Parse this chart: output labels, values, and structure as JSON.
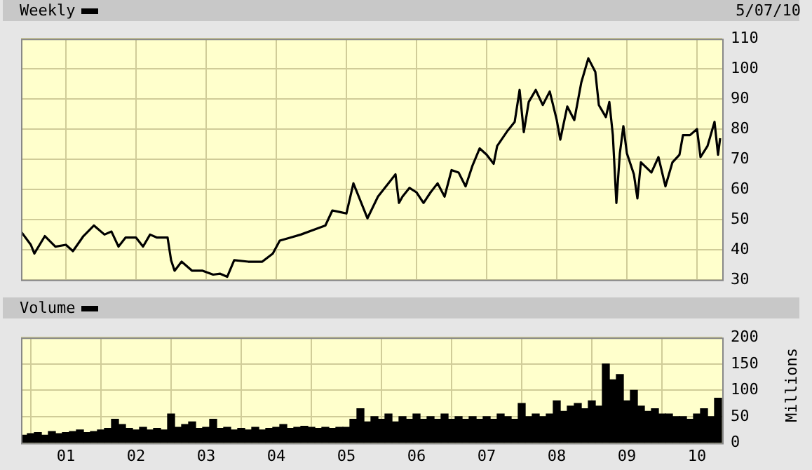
{
  "chart_data": [
    {
      "type": "line",
      "subtitle": "5/07/10",
      "legend": "top left",
      "grid": true,
      "tick_labels": "y",
      "xlim": [
        2000.36,
        2010.36
      ],
      "ylim": [
        30,
        110
      ],
      "yticks": [
        30,
        40,
        50,
        60,
        70,
        80,
        90,
        100,
        110
      ],
      "xticks": [
        {
          "value": 2001,
          "label": null
        },
        {
          "value": 2002,
          "label": null
        },
        {
          "value": 2003,
          "label": null
        },
        {
          "value": 2004,
          "label": null
        },
        {
          "value": 2005,
          "label": null
        },
        {
          "value": 2006,
          "label": null
        },
        {
          "value": 2007,
          "label": null
        },
        {
          "value": 2008,
          "label": null
        },
        {
          "value": 2009,
          "label": null
        },
        {
          "value": 2010,
          "label": null
        }
      ],
      "series": [
        {
          "name": "Weekly",
          "color": "#000000",
          "x": [
            2000.36,
            2000.5,
            2000.55,
            2000.7,
            2000.85,
            2001.0,
            2001.1,
            2001.25,
            2001.4,
            2001.55,
            2001.65,
            2001.75,
            2001.85,
            2002.0,
            2002.1,
            2002.2,
            2002.3,
            2002.45,
            2002.5,
            2002.55,
            2002.65,
            2002.8,
            2002.95,
            2003.1,
            2003.2,
            2003.3,
            2003.4,
            2003.6,
            2003.8,
            2003.95,
            2004.05,
            2004.2,
            2004.35,
            2004.55,
            2004.7,
            2004.8,
            2004.9,
            2005.0,
            2005.1,
            2005.3,
            2005.45,
            2005.6,
            2005.7,
            2005.75,
            2005.8,
            2005.9,
            2006.0,
            2006.1,
            2006.2,
            2006.3,
            2006.4,
            2006.5,
            2006.6,
            2006.7,
            2006.8,
            2006.9,
            2007.0,
            2007.1,
            2007.15,
            2007.3,
            2007.4,
            2007.47,
            2007.53,
            2007.6,
            2007.7,
            2007.8,
            2007.9,
            2008.0,
            2008.05,
            2008.15,
            2008.25,
            2008.35,
            2008.45,
            2008.55,
            2008.6,
            2008.7,
            2008.75,
            2008.8,
            2008.85,
            2008.9,
            2008.95,
            2009.0,
            2009.1,
            2009.15,
            2009.2,
            2009.35,
            2009.45,
            2009.55,
            2009.65,
            2009.75,
            2009.8,
            2009.9,
            2010.0,
            2010.05,
            2010.15,
            2010.25,
            2010.3,
            2010.33
          ],
          "values": [
            46,
            41.6,
            38.7,
            44.5,
            41,
            41.6,
            39.5,
            44.5,
            48,
            45,
            46,
            41,
            44,
            44,
            41,
            45,
            44,
            44,
            36.5,
            33,
            36,
            33,
            33,
            31.7,
            32,
            31,
            36.5,
            36,
            36,
            38.7,
            43,
            44,
            45,
            46.7,
            48,
            53,
            52.5,
            52,
            62,
            50.4,
            57.6,
            62,
            65,
            55.5,
            57.6,
            60.5,
            59,
            55.5,
            59,
            62,
            57.6,
            66.4,
            65.6,
            61,
            68,
            73.6,
            71.5,
            68.5,
            74.4,
            79.5,
            82.4,
            93,
            79,
            89,
            93,
            88,
            92.5,
            83,
            76.5,
            87.5,
            83,
            95.5,
            103.5,
            99,
            88,
            84,
            89,
            78,
            55.5,
            72,
            81,
            72,
            65,
            57,
            69,
            65.6,
            70.7,
            61,
            69,
            71.5,
            78,
            78,
            80,
            70.7,
            74.4,
            82.4,
            71.5,
            77
          ]
        }
      ]
    },
    {
      "type": "bar",
      "ylabel": "Millions",
      "legend": "top left",
      "grid": true,
      "xlim": [
        2000.36,
        2010.36
      ],
      "ylim": [
        0,
        200
      ],
      "yticks": [
        0,
        50,
        100,
        150,
        200
      ],
      "xticks": [
        {
          "value": 2001,
          "label": "01"
        },
        {
          "value": 2002,
          "label": "02"
        },
        {
          "value": 2003,
          "label": "03"
        },
        {
          "value": 2004,
          "label": "04"
        },
        {
          "value": 2005,
          "label": "05"
        },
        {
          "value": 2006,
          "label": "06"
        },
        {
          "value": 2007,
          "label": "07"
        },
        {
          "value": 2008,
          "label": "08"
        },
        {
          "value": 2009,
          "label": "09"
        },
        {
          "value": 2010,
          "label": "10"
        }
      ],
      "series": [
        {
          "name": "Volume",
          "color": "#000000",
          "x": [
            2000.4,
            2000.5,
            2000.6,
            2000.7,
            2000.8,
            2000.9,
            2001.0,
            2001.1,
            2001.2,
            2001.3,
            2001.4,
            2001.5,
            2001.6,
            2001.7,
            2001.8,
            2001.9,
            2002.0,
            2002.1,
            2002.2,
            2002.3,
            2002.4,
            2002.5,
            2002.6,
            2002.7,
            2002.8,
            2002.9,
            2003.0,
            2003.1,
            2003.2,
            2003.3,
            2003.4,
            2003.5,
            2003.6,
            2003.7,
            2003.8,
            2003.9,
            2004.0,
            2004.1,
            2004.2,
            2004.3,
            2004.4,
            2004.5,
            2004.6,
            2004.7,
            2004.8,
            2004.9,
            2005.0,
            2005.1,
            2005.2,
            2005.3,
            2005.4,
            2005.5,
            2005.6,
            2005.7,
            2005.8,
            2005.9,
            2006.0,
            2006.1,
            2006.2,
            2006.3,
            2006.4,
            2006.5,
            2006.6,
            2006.7,
            2006.8,
            2006.9,
            2007.0,
            2007.1,
            2007.2,
            2007.3,
            2007.4,
            2007.5,
            2007.6,
            2007.7,
            2007.8,
            2007.9,
            2008.0,
            2008.1,
            2008.2,
            2008.3,
            2008.4,
            2008.5,
            2008.6,
            2008.7,
            2008.8,
            2008.9,
            2009.0,
            2009.1,
            2009.2,
            2009.3,
            2009.4,
            2009.5,
            2009.6,
            2009.7,
            2009.8,
            2009.9,
            2010.0,
            2010.1,
            2010.2,
            2010.3
          ],
          "values": [
            15,
            18,
            20,
            15,
            22,
            18,
            20,
            22,
            25,
            20,
            22,
            25,
            28,
            45,
            35,
            28,
            25,
            30,
            25,
            28,
            25,
            55,
            30,
            35,
            40,
            28,
            30,
            45,
            28,
            30,
            25,
            28,
            25,
            30,
            25,
            28,
            30,
            35,
            28,
            30,
            32,
            30,
            28,
            30,
            28,
            30,
            30,
            45,
            65,
            40,
            50,
            45,
            55,
            40,
            50,
            45,
            55,
            45,
            50,
            45,
            55,
            45,
            50,
            45,
            50,
            45,
            50,
            45,
            55,
            50,
            45,
            75,
            50,
            55,
            50,
            55,
            80,
            60,
            70,
            75,
            65,
            80,
            70,
            150,
            120,
            130,
            80,
            100,
            70,
            60,
            65,
            55,
            55,
            50,
            50,
            45,
            55,
            65,
            50,
            85
          ]
        }
      ]
    }
  ]
}
